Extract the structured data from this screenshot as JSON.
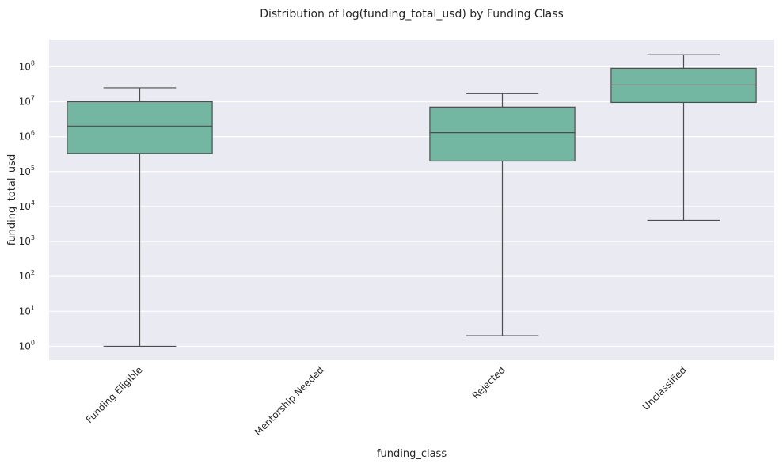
{
  "chart_data": {
    "type": "box",
    "title": "Distribution of log(funding_total_usd) by Funding Class",
    "xlabel": "funding_class",
    "ylabel": "funding_total_usd",
    "yscale": "log",
    "ylim": [
      0.4,
      600000000
    ],
    "yticks": [
      {
        "value": 1,
        "base": "10",
        "exp": "0"
      },
      {
        "value": 10,
        "base": "10",
        "exp": "1"
      },
      {
        "value": 100,
        "base": "10",
        "exp": "2"
      },
      {
        "value": 1000,
        "base": "10",
        "exp": "3"
      },
      {
        "value": 10000,
        "base": "10",
        "exp": "4"
      },
      {
        "value": 100000,
        "base": "10",
        "exp": "5"
      },
      {
        "value": 1000000,
        "base": "10",
        "exp": "6"
      },
      {
        "value": 10000000,
        "base": "10",
        "exp": "7"
      },
      {
        "value": 100000000,
        "base": "10",
        "exp": "8"
      }
    ],
    "categories": [
      "Funding Eligible",
      "Mentorship Needed",
      "Rejected",
      "Unclassified"
    ],
    "boxes": [
      {
        "category": "Funding Eligible",
        "whisker_low": 1,
        "q1": 330000,
        "median": 2000000,
        "q3": 10000000,
        "whisker_high": 25000000
      },
      {
        "category": "Mentorship Needed",
        "whisker_low": null,
        "q1": null,
        "median": null,
        "q3": null,
        "whisker_high": null
      },
      {
        "category": "Rejected",
        "whisker_low": 2,
        "q1": 200000,
        "median": 1300000,
        "q3": 7000000,
        "whisker_high": 17000000
      },
      {
        "category": "Unclassified",
        "whisker_low": 4000,
        "q1": 9500000,
        "median": 30000000,
        "q3": 90000000,
        "whisker_high": 220000000
      }
    ],
    "grid": true,
    "colors": {
      "box_fill": "#73b7a2",
      "line": "#4d4d4d",
      "background": "#eaeaf2",
      "grid": "#ffffff"
    }
  }
}
